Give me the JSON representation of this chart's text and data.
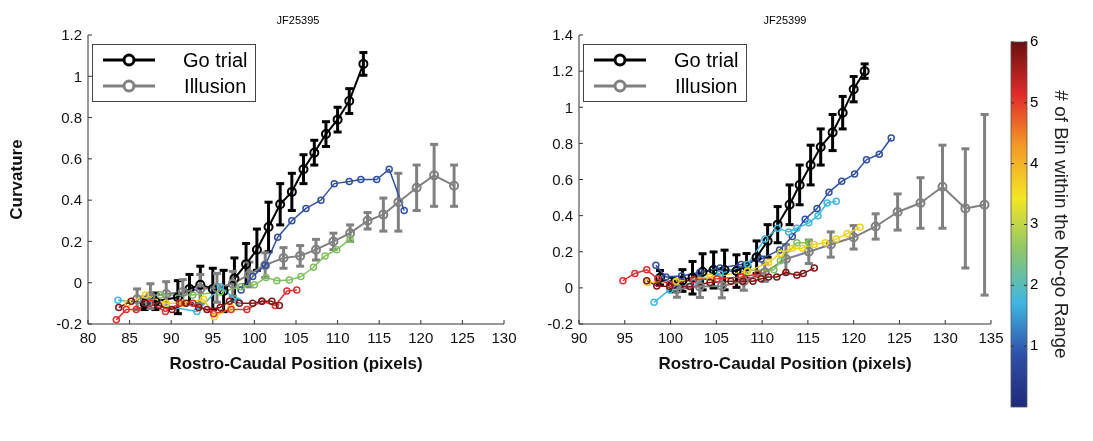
{
  "chart_data": [
    {
      "type": "line",
      "title": "JF25395",
      "xlabel": "Rostro-Caudal Position (pixels)",
      "ylabel": "Curvature",
      "xlim": [
        80,
        130
      ],
      "xticks": [
        80,
        85,
        90,
        95,
        100,
        105,
        110,
        115,
        120,
        125,
        130
      ],
      "ylim": [
        -0.2,
        1.2
      ],
      "yticks": [
        -0.2,
        0,
        0.2,
        0.4,
        0.6,
        0.8,
        1,
        1.2
      ],
      "legend": "top left",
      "marker": "circle",
      "series": [
        {
          "name": "Go trial",
          "color": "#000000",
          "x": [
            86.8,
            88.1,
            90.8,
            92.2,
            93.5,
            95.0,
            96.3,
            97.6,
            99.0,
            100.3,
            101.7,
            103.1,
            104.5,
            105.9,
            107.2,
            108.6,
            110.0,
            111.4,
            113.1
          ],
          "values": [
            -0.1,
            -0.09,
            -0.07,
            -0.03,
            -0.01,
            -0.03,
            -0.04,
            0.02,
            0.09,
            0.16,
            0.27,
            0.38,
            0.44,
            0.55,
            0.63,
            0.72,
            0.79,
            0.88,
            1.06
          ],
          "errors": [
            0.03,
            0.04,
            0.08,
            0.07,
            0.09,
            0.1,
            0.1,
            0.1,
            0.1,
            0.1,
            0.12,
            0.1,
            0.09,
            0.07,
            0.06,
            0.06,
            0.06,
            0.06,
            0.055
          ]
        },
        {
          "name": "Illusion",
          "color": "#808080",
          "x": [
            85.9,
            87.5,
            89.4,
            91.4,
            93.5,
            95.5,
            97.4,
            99.4,
            101.3,
            103.5,
            105.5,
            107.4,
            109.5,
            111.5,
            113.6,
            115.5,
            117.3,
            119.5,
            121.6,
            124.0
          ],
          "values": [
            -0.08,
            -0.065,
            -0.055,
            -0.045,
            -0.03,
            -0.025,
            -0.005,
            0.04,
            0.085,
            0.12,
            0.13,
            0.16,
            0.2,
            0.24,
            0.3,
            0.33,
            0.39,
            0.46,
            0.52,
            0.47
          ],
          "errors": [
            0.05,
            0.06,
            0.06,
            0.06,
            0.07,
            0.07,
            0.06,
            0.06,
            0.06,
            0.05,
            0.05,
            0.05,
            0.04,
            0.04,
            0.04,
            0.08,
            0.14,
            0.11,
            0.15,
            0.1
          ]
        },
        {
          "color": "#3050a0",
          "x": [
            98.4,
            99.8,
            101.3,
            102.8,
            104.5,
            106.2,
            108.0,
            109.6,
            111.4,
            112.8,
            114.7,
            116.2,
            118.0
          ],
          "values": [
            -0.035,
            0.03,
            0.085,
            0.22,
            0.3,
            0.36,
            0.4,
            0.48,
            0.49,
            0.5,
            0.5,
            0.55,
            0.35
          ]
        },
        {
          "color": "#80c060",
          "x": [
            88.7,
            92.6,
            95.9,
            98.4,
            100.0,
            101.4,
            102.7,
            104.2,
            105.6,
            107.1,
            108.5,
            109.9,
            111.5
          ],
          "values": [
            -0.06,
            -0.06,
            -0.045,
            -0.02,
            -0.01,
            0.025,
            0.01,
            0.013,
            0.03,
            0.075,
            0.13,
            0.16,
            0.21
          ]
        },
        {
          "color": "#40b8e0",
          "x": [
            83.6,
            87.3,
            93.1,
            95.9,
            98.0
          ],
          "values": [
            -0.085,
            -0.1,
            -0.14,
            -0.02,
            -0.09
          ]
        },
        {
          "color": "#f0d020",
          "x": [
            84.8,
            86.9,
            89.4,
            91.4,
            93.9,
            95.2,
            97.2
          ],
          "values": [
            -0.1,
            -0.06,
            -0.1,
            -0.1,
            -0.08,
            -0.165,
            -0.12
          ]
        },
        {
          "color": "#e03030",
          "x": [
            83.4,
            84.6,
            85.8,
            87.5,
            89.3,
            91.0,
            92.6,
            95.1,
            97.2,
            99.1,
            100.9,
            102.5,
            103.9,
            105.1
          ],
          "values": [
            -0.18,
            -0.13,
            -0.13,
            -0.1,
            -0.14,
            -0.1,
            -0.1,
            -0.15,
            -0.13,
            -0.13,
            -0.09,
            -0.11,
            -0.04,
            -0.035
          ]
        },
        {
          "color": "#801818",
          "x": [
            83.7,
            85.2,
            86.9,
            88.5,
            90.1,
            91.8,
            93.3,
            94.3,
            95.9,
            97.0,
            98.2,
            99.8,
            100.9,
            102.1,
            103.0
          ],
          "values": [
            -0.12,
            -0.09,
            -0.1,
            -0.11,
            -0.13,
            -0.1,
            -0.12,
            -0.13,
            -0.12,
            -0.09,
            -0.1,
            -0.1,
            -0.09,
            -0.09,
            -0.11
          ]
        }
      ]
    },
    {
      "type": "line",
      "title": "JF25399",
      "xlabel": "Rostro-Caudal Position (pixels)",
      "xlim": [
        90,
        135
      ],
      "xticks": [
        90,
        95,
        100,
        105,
        110,
        115,
        120,
        125,
        130,
        135
      ],
      "ylim": [
        -0.2,
        1.4
      ],
      "yticks": [
        -0.2,
        0,
        0.2,
        0.4,
        0.6,
        0.8,
        1,
        1.2,
        1.4
      ],
      "legend": "top left",
      "marker": "circle",
      "clabel": "# of Bin within the No-go Range",
      "clim": [
        0,
        6
      ],
      "cticks": [
        1,
        2,
        3,
        4,
        5,
        6
      ],
      "series": [
        {
          "name": "Go trial",
          "color": "#000000",
          "x": [
            98.85,
            100.2,
            101.3,
            102.4,
            103.5,
            104.7,
            105.9,
            107.2,
            108.3,
            109.4,
            110.6,
            111.7,
            113.0,
            114.1,
            115.3,
            116.4,
            117.7,
            118.8,
            120.0,
            121.2
          ],
          "values": [
            0.056,
            0.018,
            0.041,
            0.056,
            0.089,
            0.099,
            0.099,
            0.093,
            0.12,
            0.17,
            0.26,
            0.35,
            0.46,
            0.57,
            0.68,
            0.78,
            0.86,
            0.97,
            1.1,
            1.2
          ],
          "errors": [
            0.04,
            0.04,
            0.06,
            0.09,
            0.1,
            0.1,
            0.11,
            0.09,
            0.07,
            0.09,
            0.09,
            0.1,
            0.11,
            0.11,
            0.11,
            0.1,
            0.1,
            0.09,
            0.07,
            0.04
          ]
        },
        {
          "name": "Illusion",
          "color": "#808080",
          "x": [
            100.7,
            103.2,
            105.6,
            108.0,
            110.3,
            112.6,
            115.1,
            117.5,
            120.0,
            122.4,
            124.8,
            127.3,
            129.7,
            132.2,
            134.3
          ],
          "values": [
            -0.007,
            0.007,
            0.01,
            0.037,
            0.086,
            0.16,
            0.2,
            0.24,
            0.28,
            0.34,
            0.42,
            0.47,
            0.56,
            0.44,
            0.46
          ],
          "errors": [
            0.045,
            0.06,
            0.065,
            0.05,
            0.05,
            0.08,
            0.065,
            0.07,
            0.065,
            0.07,
            0.1,
            0.14,
            0.23,
            0.33,
            0.5
          ]
        },
        {
          "color": "#3050a0",
          "x": [
            98.4,
            99.5,
            101.2,
            103.2,
            105.4,
            107.7,
            109.9,
            111.9,
            113.3,
            114.7,
            116.0,
            117.3,
            118.7,
            120.1,
            121.4,
            122.8,
            124.1
          ],
          "values": [
            0.125,
            0.06,
            0.066,
            0.086,
            0.11,
            0.13,
            0.16,
            0.21,
            0.285,
            0.38,
            0.44,
            0.53,
            0.59,
            0.63,
            0.71,
            0.74,
            0.83
          ]
        },
        {
          "color": "#40b8e0",
          "x": [
            98.2,
            99.9,
            102.5,
            105.4,
            108.4,
            110.3,
            111.7,
            112.9,
            113.8,
            115.1,
            116.1,
            117.1,
            118.1
          ],
          "values": [
            -0.08,
            -0.01,
            0.03,
            0.077,
            0.13,
            0.27,
            0.33,
            0.31,
            0.33,
            0.36,
            0.4,
            0.47,
            0.48
          ]
        },
        {
          "color": "#80c060",
          "x": [
            108.4,
            111.3,
            112.0,
            113.8,
            115.1
          ],
          "values": [
            0.096,
            0.1,
            0.15,
            0.25,
            0.25
          ]
        },
        {
          "color": "#f0d020",
          "x": [
            97.5,
            100.6,
            104.3,
            108.4,
            110.7,
            112.0,
            113.3,
            114.4,
            115.7,
            116.9,
            118.1,
            119.3,
            120.7
          ],
          "values": [
            0.03,
            0.037,
            0.06,
            0.09,
            0.14,
            0.19,
            0.22,
            0.22,
            0.24,
            0.25,
            0.27,
            0.3,
            0.335
          ]
        },
        {
          "color": "#e03030",
          "x": [
            94.8,
            96.1,
            97.4,
            98.6,
            99.9,
            102.5,
            105.1,
            107.7,
            109.5
          ],
          "values": [
            0.04,
            0.08,
            0.1,
            0.05,
            0.02,
            0.045,
            0.05,
            0.06,
            0.075
          ]
        },
        {
          "color": "#801818",
          "x": [
            97.4,
            98.5,
            99.9,
            102.1,
            104.3,
            106.6,
            107.9,
            109.0,
            109.9,
            110.7,
            111.6,
            112.6,
            113.8,
            114.5,
            115.7
          ],
          "values": [
            0.04,
            0.01,
            0.007,
            0.007,
            0.03,
            0.037,
            0.037,
            0.037,
            0.05,
            0.06,
            0.06,
            0.085,
            0.07,
            0.08,
            0.11
          ]
        }
      ]
    }
  ]
}
